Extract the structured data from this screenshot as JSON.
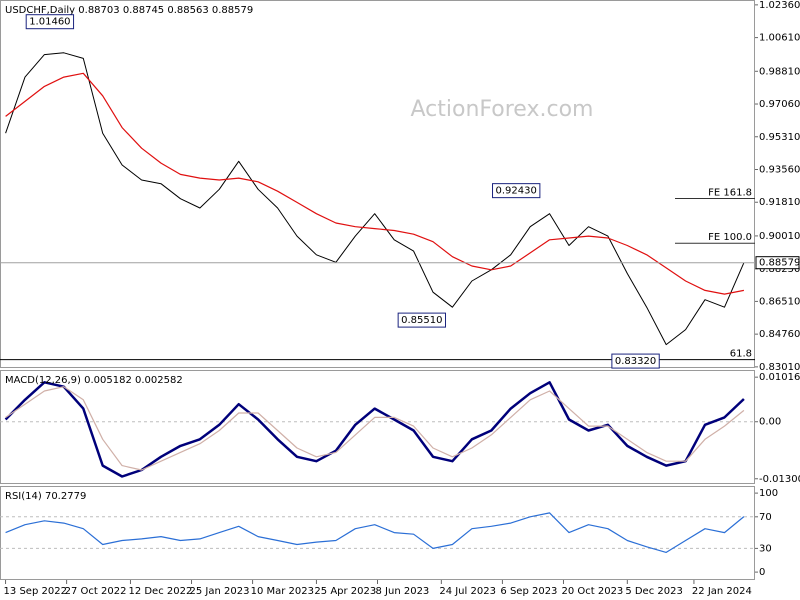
{
  "chart_data": [
    {
      "type": "line",
      "title": "USDCHF,Daily  0.88703 0.88745 0.88563 0.88579",
      "watermark": "ActionForex.com",
      "x": [
        "2022-09-13",
        "2022-09-27",
        "2022-10-11",
        "2022-10-25",
        "2022-11-08",
        "2022-11-22",
        "2022-12-06",
        "2022-12-20",
        "2023-01-03",
        "2023-01-17",
        "2023-01-31",
        "2023-02-14",
        "2023-02-28",
        "2023-03-14",
        "2023-03-28",
        "2023-04-11",
        "2023-04-25",
        "2023-05-09",
        "2023-05-23",
        "2023-06-06",
        "2023-06-20",
        "2023-07-04",
        "2023-07-18",
        "2023-08-01",
        "2023-08-15",
        "2023-08-29",
        "2023-09-12",
        "2023-09-26",
        "2023-10-10",
        "2023-10-24",
        "2023-11-07",
        "2023-11-21",
        "2023-12-05",
        "2023-12-19",
        "2024-01-02",
        "2024-01-16",
        "2024-01-30",
        "2024-02-13",
        "2024-02-27"
      ],
      "xlim": [
        "2022-09-09",
        "2024-03-06"
      ],
      "ylim": [
        0.8295,
        1.0262
      ],
      "yticks": [
        {
          "value": 1.0236,
          "label": "1.02360"
        },
        {
          "value": 1.0061,
          "label": "1.00610"
        },
        {
          "value": 0.9881,
          "label": "0.98810"
        },
        {
          "value": 0.9706,
          "label": "0.97060"
        },
        {
          "value": 0.9531,
          "label": "0.95310"
        },
        {
          "value": 0.9356,
          "label": "0.93560"
        },
        {
          "value": 0.9181,
          "label": "0.91810"
        },
        {
          "value": 0.9001,
          "label": "0.90010"
        },
        {
          "value": 0.8825,
          "label": "0.88250"
        },
        {
          "value": 0.8651,
          "label": "0.86510"
        },
        {
          "value": 0.8476,
          "label": "0.84760"
        },
        {
          "value": 0.8301,
          "label": "0.83010"
        }
      ],
      "series": [
        {
          "color": "#000000",
          "values": [
            0.955,
            0.985,
            0.997,
            0.998,
            0.995,
            0.955,
            0.938,
            0.93,
            0.928,
            0.92,
            0.915,
            0.925,
            0.94,
            0.925,
            0.915,
            0.9,
            0.89,
            0.886,
            0.9,
            0.912,
            0.898,
            0.892,
            0.87,
            0.862,
            0.876,
            0.882,
            0.89,
            0.905,
            0.912,
            0.895,
            0.905,
            0.9,
            0.88,
            0.862,
            0.842,
            0.85,
            0.866,
            0.862,
            0.88579
          ]
        },
        {
          "color": "#e01010",
          "values": [
            0.964,
            0.972,
            0.98,
            0.985,
            0.987,
            0.975,
            0.958,
            0.947,
            0.939,
            0.933,
            0.931,
            0.93,
            0.931,
            0.929,
            0.924,
            0.918,
            0.912,
            0.907,
            0.905,
            0.904,
            0.903,
            0.901,
            0.897,
            0.889,
            0.884,
            0.882,
            0.884,
            0.891,
            0.898,
            0.899,
            0.9,
            0.899,
            0.895,
            0.89,
            0.883,
            0.876,
            0.871,
            0.869,
            0.871
          ]
        }
      ],
      "annotations": [
        {
          "label": "1.01460",
          "value": 1.0146,
          "date": "2022-11-01"
        },
        {
          "label": "0.85510",
          "value": 0.8551,
          "date": "2023-07-27"
        },
        {
          "label": "0.92430",
          "value": 0.9243,
          "date": "2023-10-03"
        },
        {
          "label": "0.83320",
          "value": 0.8332,
          "date": "2023-12-28"
        }
      ],
      "levels": [
        {
          "label": "FE 161.8",
          "value": 0.9201
        },
        {
          "label": "FE 100.0",
          "value": 0.8962
        },
        {
          "label": "61.8",
          "value": 0.834
        }
      ],
      "last_price": {
        "value": 0.88579,
        "label": "0.88579"
      }
    },
    {
      "type": "line",
      "title": "MACD(12,26,9) 0.005182 0.002582",
      "ylim": [
        -0.0142,
        0.0118
      ],
      "yticks": [
        0.010166,
        {
          "value": 0,
          "label": "0.00"
        },
        -0.013006
      ],
      "levels": [
        0
      ],
      "series": [
        {
          "color": "#00007a",
          "values": [
            0.0005,
            0.005,
            0.009,
            0.008,
            0.003,
            -0.01,
            -0.0125,
            -0.011,
            -0.008,
            -0.0055,
            -0.004,
            -0.0007,
            0.004,
            0.0005,
            -0.004,
            -0.008,
            -0.009,
            -0.0066,
            -0.0007,
            0.003,
            0.0005,
            -0.002,
            -0.008,
            -0.009,
            -0.004,
            -0.002,
            0.003,
            0.0065,
            0.009,
            0.0005,
            -0.002,
            -0.0007,
            -0.0055,
            -0.008,
            -0.01,
            -0.009,
            -0.0007,
            0.001,
            0.005182
          ]
        },
        {
          "color": "#d0b0a8",
          "values": [
            0.001,
            0.004,
            0.007,
            0.008,
            0.005,
            -0.004,
            -0.01,
            -0.011,
            -0.009,
            -0.007,
            -0.005,
            -0.002,
            0.002,
            0.002,
            -0.002,
            -0.006,
            -0.008,
            -0.007,
            -0.003,
            0.001,
            0.001,
            -0.001,
            -0.006,
            -0.008,
            -0.006,
            -0.003,
            0.001,
            0.005,
            0.007,
            0.003,
            -0.001,
            -0.001,
            -0.004,
            -0.007,
            -0.009,
            -0.009,
            -0.004,
            -0.001,
            0.002582
          ]
        }
      ]
    },
    {
      "type": "line",
      "title": "RSI(14) 70.2779",
      "ylim": [
        -10,
        109
      ],
      "yticks": [
        100,
        70,
        30,
        0
      ],
      "levels": [
        30,
        70
      ],
      "series": [
        {
          "color": "#2b6fd6",
          "values": [
            50,
            60,
            65,
            62,
            55,
            35,
            40,
            42,
            45,
            40,
            42,
            50,
            58,
            45,
            40,
            35,
            38,
            40,
            55,
            60,
            50,
            48,
            30,
            35,
            55,
            58,
            62,
            70,
            75,
            50,
            60,
            55,
            40,
            32,
            25,
            40,
            55,
            50,
            70.2779
          ]
        }
      ],
      "xticks": [
        {
          "value": "2022-09-13",
          "label": "13 Sep 2022"
        },
        {
          "value": "2022-10-27",
          "label": "27 Oct 2022"
        },
        {
          "value": "2022-12-12",
          "label": "12 Dec 2022"
        },
        {
          "value": "2023-01-25",
          "label": "25 Jan 2023"
        },
        {
          "value": "2023-03-10",
          "label": "10 Mar 2023"
        },
        {
          "value": "2023-04-25",
          "label": "25 Apr 2023"
        },
        {
          "value": "2023-06-08",
          "label": "8 Jun 2023"
        },
        {
          "value": "2023-07-24",
          "label": "24 Jul 2023"
        },
        {
          "value": "2023-09-06",
          "label": "6 Sep 2023"
        },
        {
          "value": "2023-10-20",
          "label": "20 Oct 2023"
        },
        {
          "value": "2023-12-05",
          "label": "5 Dec 2023"
        },
        {
          "value": "2024-01-22",
          "label": "22 Jan 2024"
        }
      ]
    }
  ]
}
